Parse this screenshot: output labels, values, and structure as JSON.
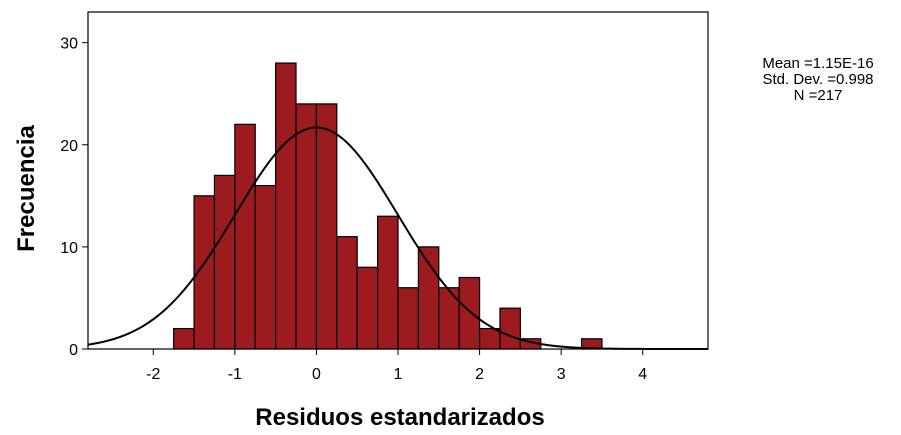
{
  "chart_data": {
    "type": "bar",
    "subtype": "histogram",
    "xlabel": "Residuos estandarizados",
    "ylabel": "Frecuencia",
    "xlim": [
      -2.8,
      4.8
    ],
    "ylim": [
      0,
      33
    ],
    "x_ticks": [
      "-2",
      "-1",
      "0",
      "1",
      "2",
      "3",
      "4"
    ],
    "y_ticks": [
      "0",
      "10",
      "20",
      "30"
    ],
    "bin_width": 0.25,
    "bins": [
      {
        "start": -1.75,
        "count": 2
      },
      {
        "start": -1.5,
        "count": 15
      },
      {
        "start": -1.25,
        "count": 17
      },
      {
        "start": -1.0,
        "count": 22
      },
      {
        "start": -0.75,
        "count": 16
      },
      {
        "start": -0.5,
        "count": 28
      },
      {
        "start": -0.25,
        "count": 24
      },
      {
        "start": 0.0,
        "count": 24
      },
      {
        "start": 0.25,
        "count": 11
      },
      {
        "start": 0.5,
        "count": 8
      },
      {
        "start": 0.75,
        "count": 13
      },
      {
        "start": 1.0,
        "count": 6
      },
      {
        "start": 1.25,
        "count": 10
      },
      {
        "start": 1.5,
        "count": 6
      },
      {
        "start": 1.75,
        "count": 7
      },
      {
        "start": 2.0,
        "count": 2
      },
      {
        "start": 2.25,
        "count": 4
      },
      {
        "start": 2.5,
        "count": 1
      },
      {
        "start": 3.25,
        "count": 1
      }
    ],
    "normal_curve": {
      "mean": 0,
      "sd": 0.998,
      "n": 217
    },
    "stats_text": [
      "Mean =1.15E-16",
      "Std. Dev. =0.998",
      "N =217"
    ],
    "legend_position": "right",
    "grid": false,
    "colors": {
      "bar_fill": "#9b1b1e",
      "bar_stroke": "#000000",
      "curve": "#000000",
      "frame": "#000000"
    }
  }
}
